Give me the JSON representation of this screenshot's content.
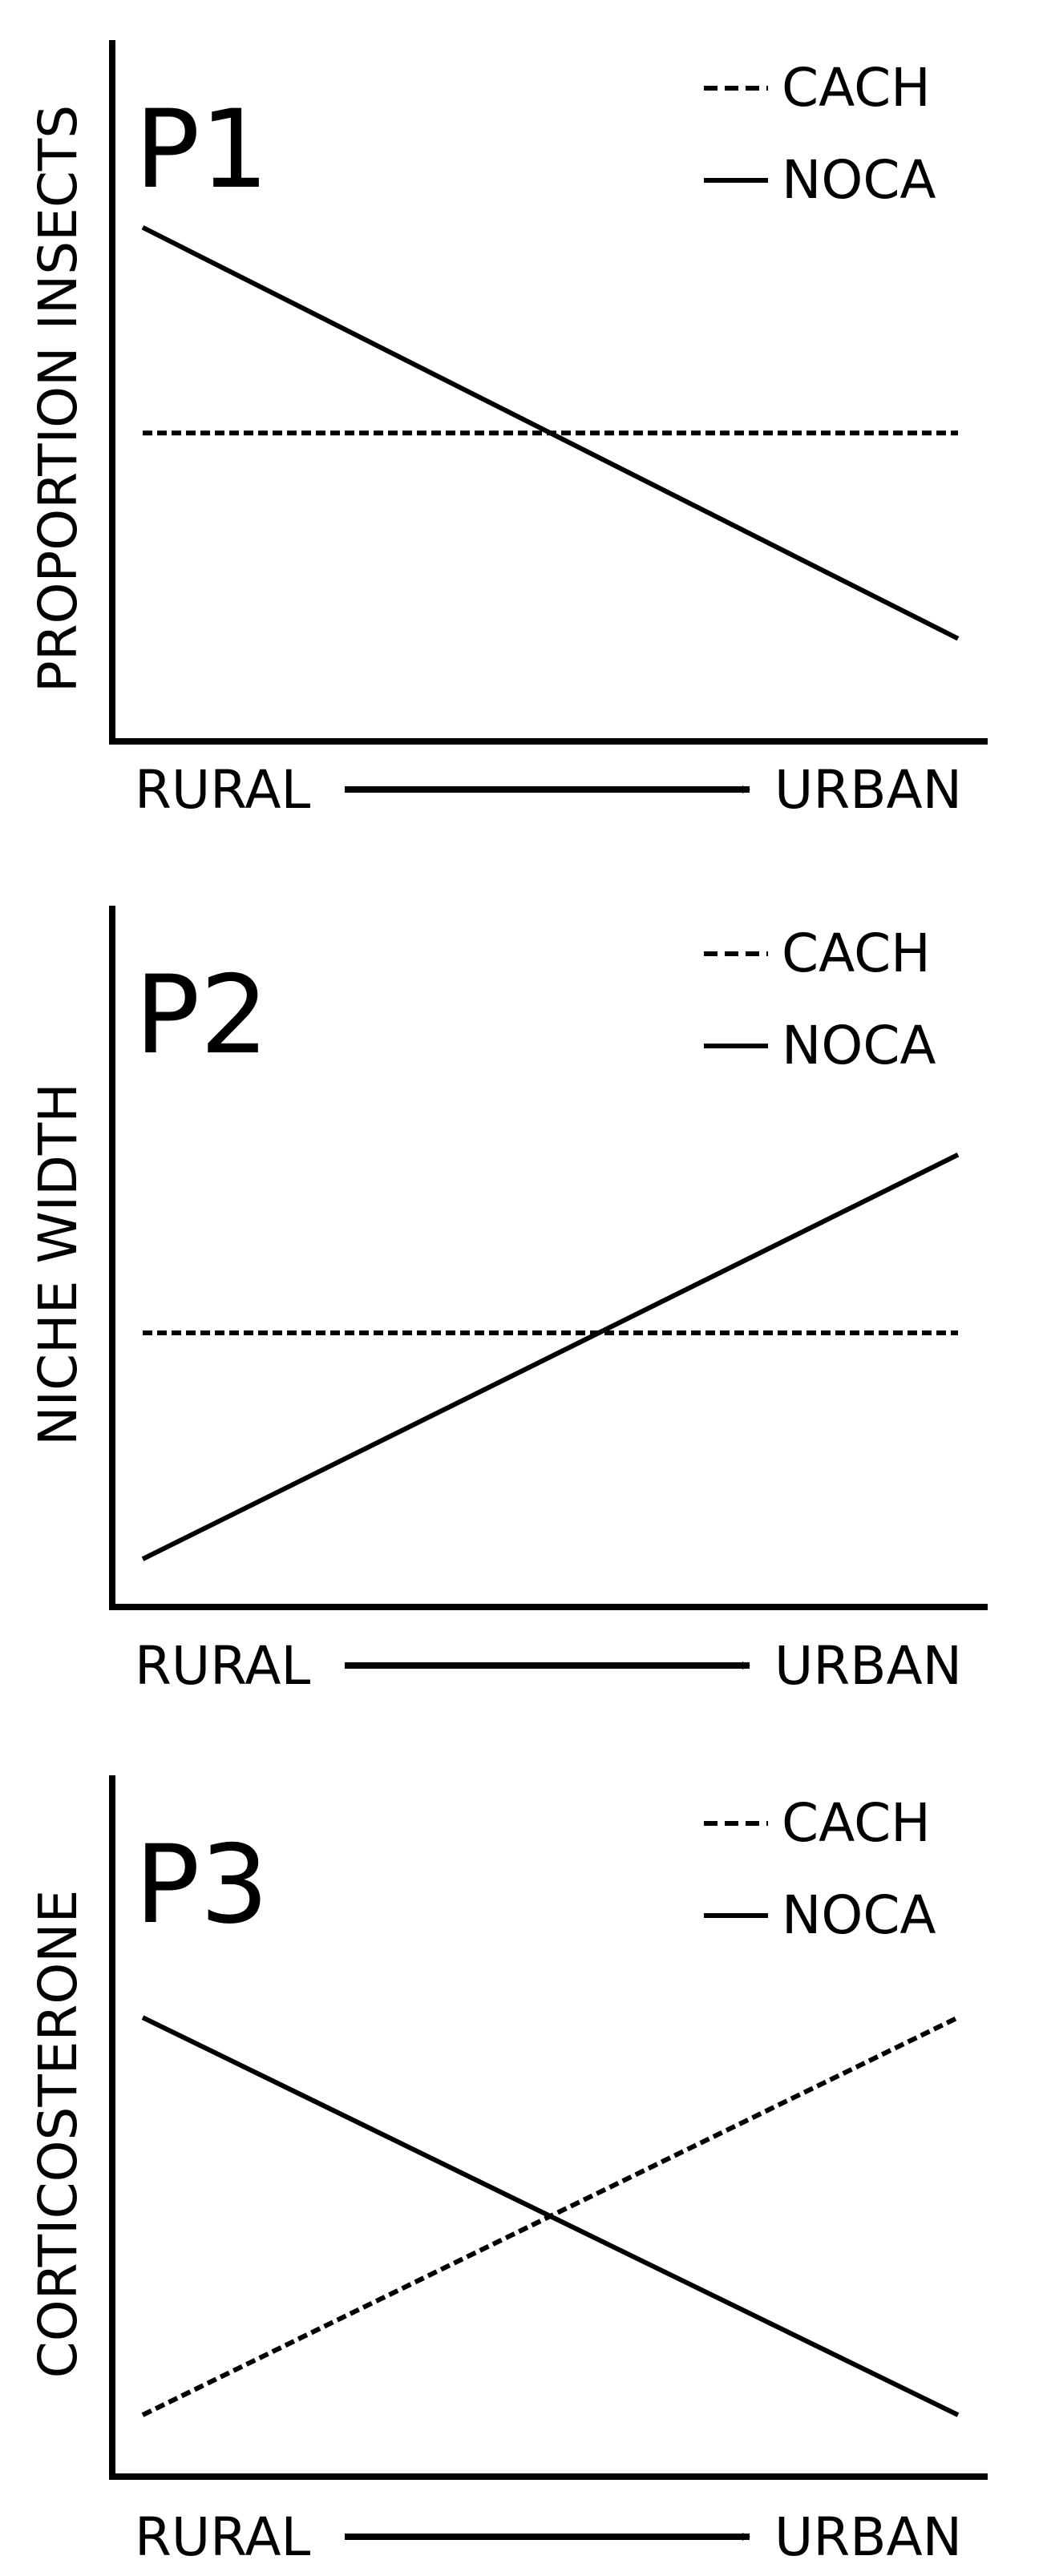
{
  "colors": {
    "ink": "#000000",
    "background": "#ffffff"
  },
  "chart_data": [
    {
      "type": "line",
      "panel_label": "P1",
      "ylabel": "PROPORTION INSECTS",
      "xlabel_left": "RURAL",
      "xlabel_right": "URBAN",
      "x": [
        0,
        1
      ],
      "xlim": [
        0,
        1
      ],
      "ylim": [
        0,
        1
      ],
      "grid": false,
      "legend_position": "top-right",
      "series": [
        {
          "name": "CACH",
          "style": "dashed",
          "values": [
            0.45,
            0.45
          ]
        },
        {
          "name": "NOCA",
          "style": "solid",
          "values": [
            0.75,
            0.15
          ]
        }
      ]
    },
    {
      "type": "line",
      "panel_label": "P2",
      "ylabel": "NICHE WIDTH",
      "xlabel_left": "RURAL",
      "xlabel_right": "URBAN",
      "x": [
        0,
        1
      ],
      "xlim": [
        0,
        1
      ],
      "ylim": [
        0,
        1
      ],
      "grid": false,
      "legend_position": "top-right",
      "series": [
        {
          "name": "CACH",
          "style": "dashed",
          "values": [
            0.4,
            0.4
          ]
        },
        {
          "name": "NOCA",
          "style": "solid",
          "values": [
            0.07,
            0.66
          ]
        }
      ]
    },
    {
      "type": "line",
      "panel_label": "P3",
      "ylabel": "CORTICOSTERONE",
      "xlabel_left": "RURAL",
      "xlabel_right": "URBAN",
      "x": [
        0,
        1
      ],
      "xlim": [
        0,
        1
      ],
      "ylim": [
        0,
        1
      ],
      "grid": false,
      "legend_position": "top-right",
      "series": [
        {
          "name": "CACH",
          "style": "dashed",
          "values": [
            0.09,
            0.67
          ]
        },
        {
          "name": "NOCA",
          "style": "solid",
          "values": [
            0.67,
            0.09
          ]
        }
      ]
    }
  ]
}
